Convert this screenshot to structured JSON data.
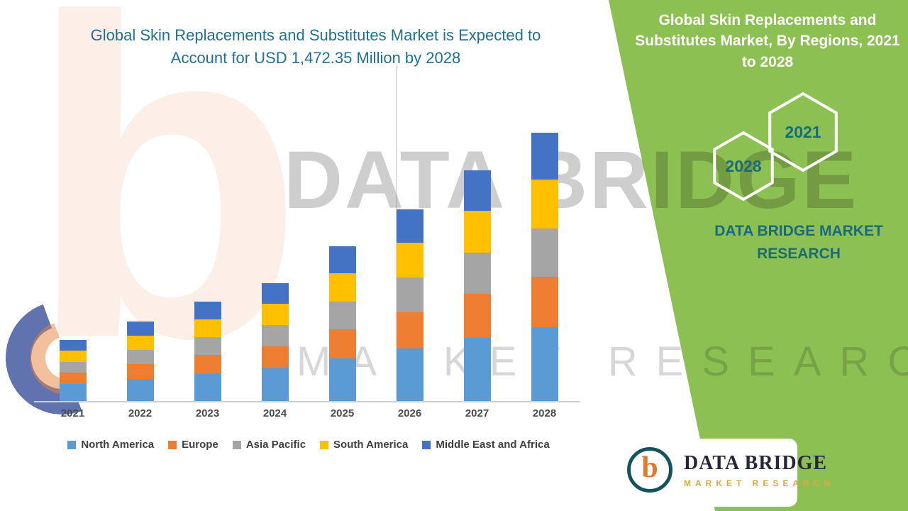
{
  "header": {
    "left_title": "Global Skin Replacements and Substitutes Market is Expected to Account for USD 1,472.35 Million by 2028"
  },
  "right_panel": {
    "title": "Global Skin Replacements and Substitutes Market, By Regions, 2021 to 2028",
    "hexagons": [
      "2028",
      "2021"
    ],
    "brand_text": "DATA BRIDGE MARKET RESEARCH"
  },
  "watermark": {
    "monogram": "b",
    "line1": "DATA BRIDGE",
    "line2": "MARKET RESEARCH"
  },
  "logo": {
    "monogram": "b",
    "name": "DATA BRIDGE",
    "tagline": "MARKET RESEARCH"
  },
  "colors": {
    "panel-green": "#8DC052",
    "accent-teal": "#1A6B7A",
    "title-blue": "#1F7093",
    "logo-navy": "#26263C",
    "logo-gold": "#D9A93C"
  },
  "chart_data": {
    "type": "bar",
    "stacked": true,
    "title": "Global Skin Replacements and Substitutes Market is Expected to Account for USD 1,472.35 Million by 2028",
    "categories": [
      "2021",
      "2022",
      "2023",
      "2024",
      "2025",
      "2026",
      "2027",
      "2028"
    ],
    "series": [
      {
        "name": "North America",
        "color": "#5B9BD5",
        "values": [
          92,
          120,
          150,
          178,
          233,
          289,
          348,
          405
        ]
      },
      {
        "name": "Europe",
        "color": "#ED7D31",
        "values": [
          63,
          82,
          103,
          123,
          161,
          200,
          240,
          279
        ]
      },
      {
        "name": "Asia Pacific",
        "color": "#A5A5A5",
        "values": [
          60,
          78,
          97,
          116,
          152,
          189,
          227,
          264
        ]
      },
      {
        "name": "South America",
        "color": "#FFC000",
        "values": [
          61,
          80,
          99,
          118,
          155,
          192,
          231,
          269
        ]
      },
      {
        "name": "Middle East and Africa",
        "color": "#4472C4",
        "values": [
          59,
          76,
          95,
          113,
          148,
          183,
          220,
          255.35
        ]
      }
    ],
    "totals": [
      335,
      436,
      544,
      648,
      849,
      1053,
      1266,
      1472.35
    ],
    "xlabel": "",
    "ylabel": "",
    "ylim": [
      0,
      1500
    ],
    "grid": false,
    "legend_position": "bottom"
  }
}
